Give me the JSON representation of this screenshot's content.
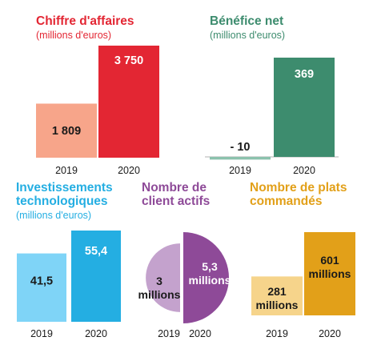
{
  "colors": {
    "red": "#e32633",
    "salmon": "#f7a58a",
    "green": "#3d8c6e",
    "light_green": "#8cc2ad",
    "cyan": "#24aee2",
    "light_cyan": "#7fd4f7",
    "purple": "#8e4a98",
    "light_purple": "#c4a2cd",
    "gold": "#e2a019",
    "light_gold": "#f6d48b",
    "text": "#1a1a1a"
  },
  "chart_data": [
    {
      "type": "bar",
      "title": "Chiffre d'affaires",
      "subtitle": "(millions d'euros)",
      "categories": [
        "2019",
        "2020"
      ],
      "values": [
        1809,
        3750
      ],
      "value_labels": [
        "1 809",
        "3 750"
      ]
    },
    {
      "type": "bar",
      "title": "Bénéfice net",
      "subtitle": "(millions d'euros)",
      "categories": [
        "2019",
        "2020"
      ],
      "values": [
        -10,
        369
      ],
      "value_labels": [
        "- 10",
        "369"
      ]
    },
    {
      "type": "bar",
      "title": "Investissements technologiques",
      "subtitle": "(millions d'euros)",
      "categories": [
        "2019",
        "2020"
      ],
      "values": [
        41.5,
        55.4
      ],
      "value_labels": [
        "41,5",
        "55,4"
      ]
    },
    {
      "type": "pie",
      "title": "Nombre de client actifs",
      "categories": [
        "2019",
        "2020"
      ],
      "values": [
        3,
        5.3
      ],
      "value_labels": [
        "3 millions",
        "5,3 millions"
      ]
    },
    {
      "type": "bar",
      "title": "Nombre de plats commandés",
      "categories": [
        "2019",
        "2020"
      ],
      "values": [
        281,
        601
      ],
      "value_labels": [
        "281 millions",
        "601 millions"
      ]
    }
  ]
}
